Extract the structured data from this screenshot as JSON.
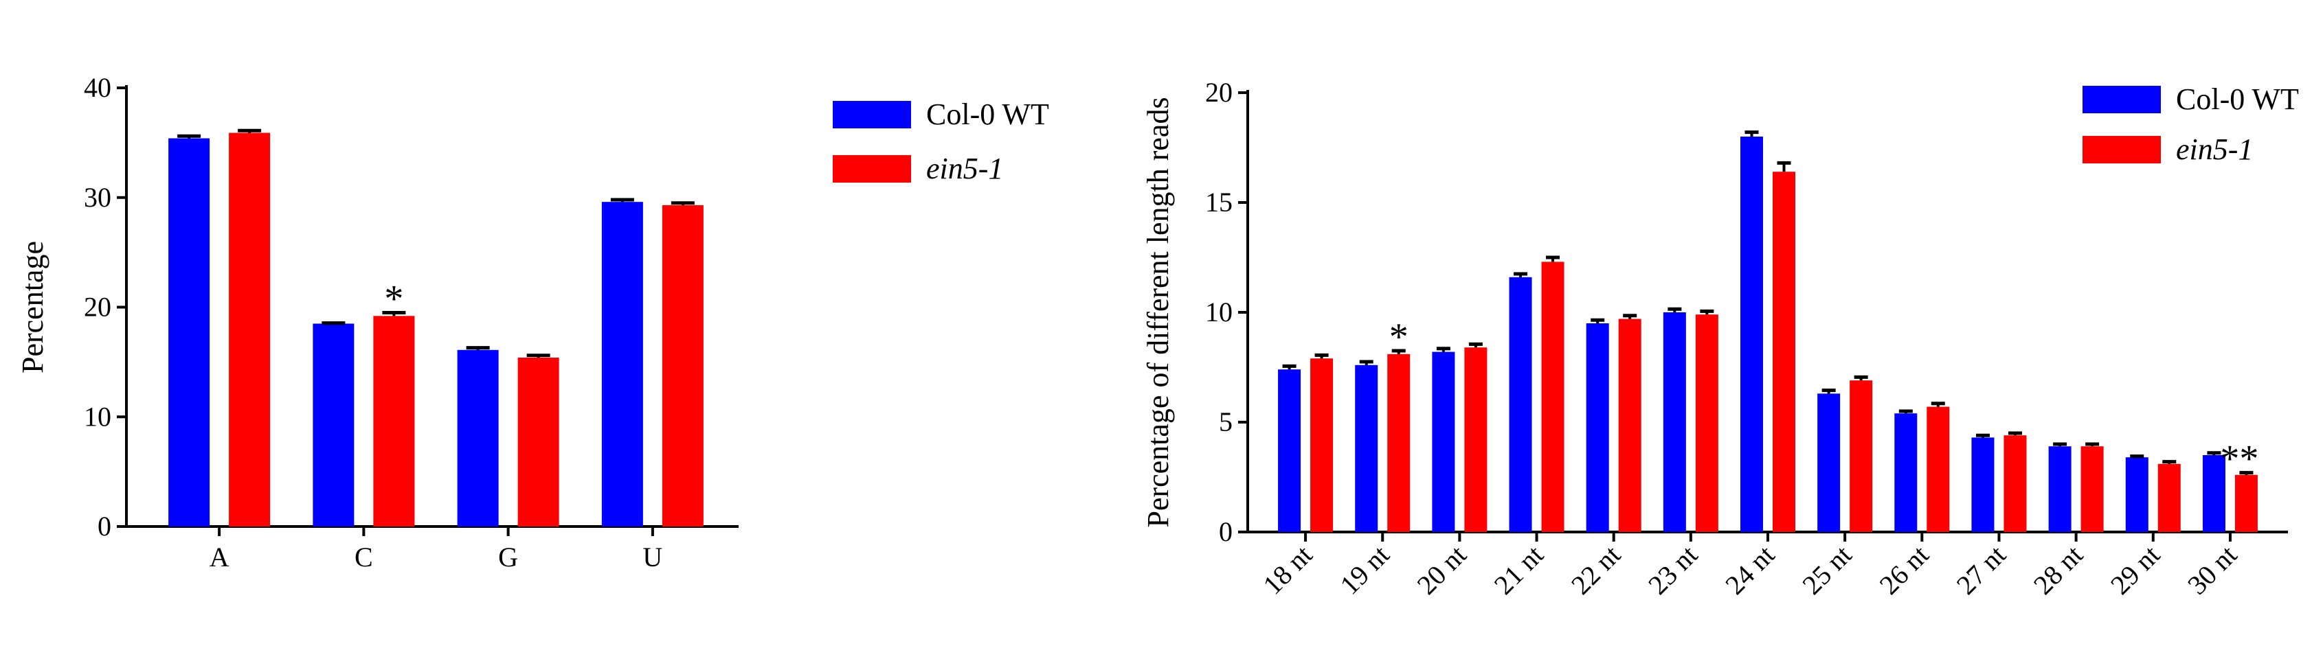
{
  "colors": {
    "series_1": "#0000FF",
    "series_2": "#FF0000",
    "axis": "#000000",
    "error_bar": "#000000"
  },
  "chart_data": [
    {
      "type": "bar",
      "title": "",
      "xlabel": "",
      "ylabel": "Percentage",
      "ylim": [
        0,
        40
      ],
      "yticks": [
        0,
        10,
        20,
        30,
        40
      ],
      "categories": [
        "A",
        "C",
        "G",
        "U"
      ],
      "series": [
        {
          "name": "Col-0 WT",
          "italic": false,
          "values": [
            35.4,
            18.5,
            16.1,
            29.6
          ],
          "errors": [
            0.2,
            0.05,
            0.2,
            0.2
          ]
        },
        {
          "name": "ein5-1",
          "italic": true,
          "values": [
            35.9,
            19.2,
            15.4,
            29.3
          ],
          "errors": [
            0.2,
            0.3,
            0.2,
            0.2
          ]
        }
      ],
      "annotations": [
        {
          "category": "C",
          "series": 1,
          "text": "*"
        }
      ],
      "legend": "right"
    },
    {
      "type": "bar",
      "title": "",
      "xlabel": "",
      "ylabel": "Percentage of different length reads",
      "ylim": [
        0,
        20
      ],
      "yticks": [
        0,
        5,
        10,
        15,
        20
      ],
      "categories": [
        "18 nt",
        "19 nt",
        "20 nt",
        "21 nt",
        "22 nt",
        "23 nt",
        "24 nt",
        "25 nt",
        "26 nt",
        "27 nt",
        "28 nt",
        "29 nt",
        "30 nt"
      ],
      "series": [
        {
          "name": "Col-0 WT",
          "italic": false,
          "values": [
            7.4,
            7.6,
            8.2,
            11.6,
            9.5,
            10.0,
            18.0,
            6.3,
            5.4,
            4.3,
            3.9,
            3.4,
            3.5
          ],
          "errors": [
            0.15,
            0.15,
            0.15,
            0.15,
            0.15,
            0.15,
            0.2,
            0.15,
            0.1,
            0.1,
            0.1,
            0.05,
            0.1
          ]
        },
        {
          "name": "ein5-1",
          "italic": true,
          "values": [
            7.9,
            8.1,
            8.4,
            12.3,
            9.7,
            9.9,
            16.4,
            6.9,
            5.7,
            4.4,
            3.9,
            3.1,
            2.6
          ],
          "errors": [
            0.15,
            0.15,
            0.15,
            0.2,
            0.15,
            0.15,
            0.4,
            0.15,
            0.15,
            0.1,
            0.1,
            0.1,
            0.1
          ]
        }
      ],
      "annotations": [
        {
          "category": "19 nt",
          "series": 1,
          "text": "*"
        },
        {
          "category": "30 nt",
          "series": 1,
          "text": "**"
        }
      ],
      "legend": "top-right"
    }
  ]
}
